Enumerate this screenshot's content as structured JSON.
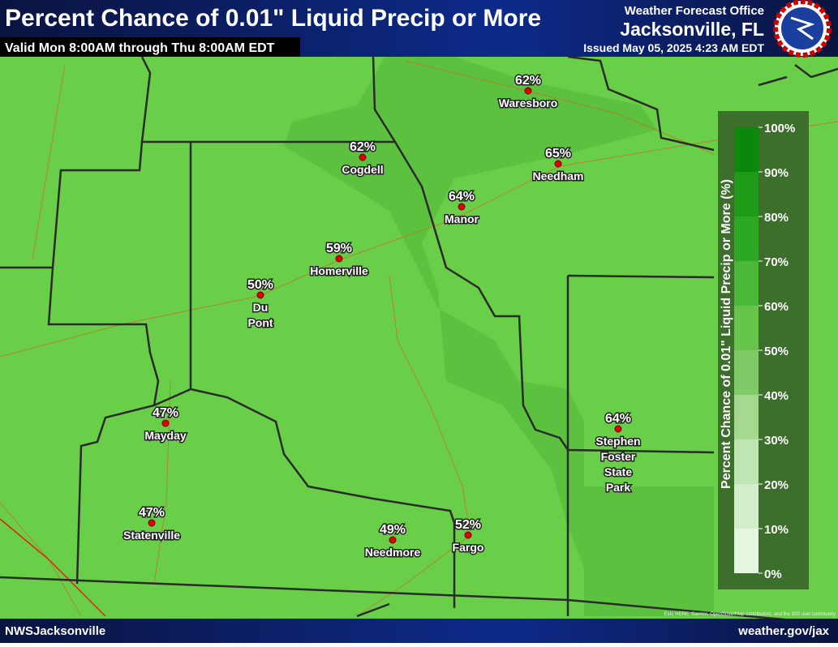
{
  "header": {
    "title": "Percent Chance of 0.01\" Liquid Precip or More",
    "subtitle": "Valid Mon 8:00AM through Thu 8:00AM EDT",
    "office": "Weather Forecast Office",
    "location": "Jacksonville, FL",
    "issued": "Issued May 05, 2025 4:23 AM EDT"
  },
  "cities": [
    {
      "label": "62%",
      "name_lines": [
        "Waresboro"
      ]
    },
    {
      "label": "62%",
      "name_lines": [
        "Cogdell"
      ]
    },
    {
      "label": "65%",
      "name_lines": [
        "Needham"
      ]
    },
    {
      "label": "64%",
      "name_lines": [
        "Manor"
      ]
    },
    {
      "label": "59%",
      "name_lines": [
        "Homerville"
      ]
    },
    {
      "label": "50%",
      "name_lines": [
        "Du",
        "Pont"
      ]
    },
    {
      "label": "47%",
      "name_lines": [
        "Mayday"
      ]
    },
    {
      "label": "47%",
      "name_lines": [
        "Statenville"
      ]
    },
    {
      "label": "49%",
      "name_lines": [
        "Needmore"
      ]
    },
    {
      "label": "52%",
      "name_lines": [
        "Fargo"
      ]
    },
    {
      "label": "64%",
      "name_lines": [
        "Stephen",
        "Foster",
        "State",
        "Park"
      ]
    }
  ],
  "legend": {
    "title": "Percent Chance of 0.01\" Liquid Precip or More (%)",
    "ticks": [
      {
        "value": 0,
        "label": "0%"
      },
      {
        "value": 10,
        "label": "10%"
      },
      {
        "value": 20,
        "label": "20%"
      },
      {
        "value": 30,
        "label": "30%"
      },
      {
        "value": 40,
        "label": "40%"
      },
      {
        "value": 50,
        "label": "50%"
      },
      {
        "value": 60,
        "label": "60%"
      },
      {
        "value": 70,
        "label": "70%"
      },
      {
        "value": 80,
        "label": "80%"
      },
      {
        "value": 90,
        "label": "90%"
      },
      {
        "value": 100,
        "label": "100%"
      }
    ],
    "colors": [
      "#e5f5e0",
      "#d2edc9",
      "#bfe5b2",
      "#a4d98f",
      "#7fcb67",
      "#66c44a",
      "#4bb83a",
      "#2da824",
      "#1e9a18",
      "#0b870b"
    ]
  },
  "attribution": "Esri, HERE, Garmin, OpenStreetMap contributors, and the GIS user community",
  "footer": {
    "left": "NWSJacksonville",
    "right": "weather.gov/jax"
  }
}
